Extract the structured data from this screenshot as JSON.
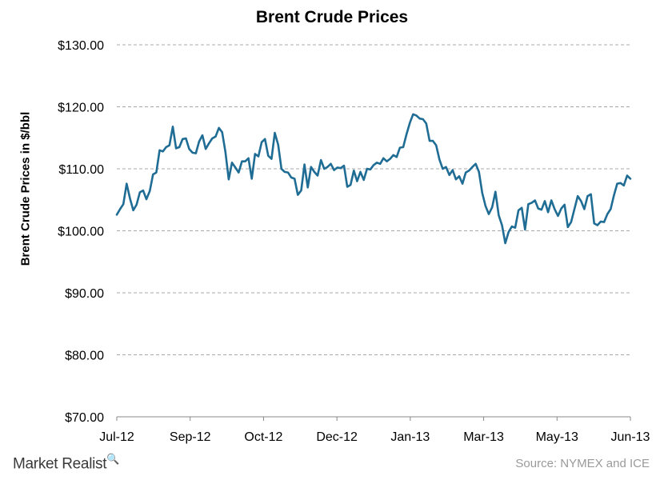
{
  "chart_data": {
    "type": "line",
    "title": "Brent Crude Prices",
    "xlabel": "",
    "ylabel": "Brent Crude Prices in $/bbl",
    "ylim": [
      70,
      130
    ],
    "yticks": [
      "$70.00",
      "$80.00",
      "$90.00",
      "$100.00",
      "$110.00",
      "$120.00",
      "$130.00"
    ],
    "xticks": [
      "Jul-12",
      "Sep-12",
      "Oct-12",
      "Dec-12",
      "Jan-13",
      "Mar-13",
      "May-13",
      "Jun-13"
    ],
    "grid": true,
    "line_color": "#1f6c94",
    "series": [
      {
        "values": [
          102.6,
          103.5,
          104.3,
          107.6,
          105.2,
          103.3,
          104.2,
          106.2,
          106.5,
          105.1,
          106.4,
          109.1,
          109.4,
          113.0,
          112.8,
          113.5,
          113.8,
          116.8,
          113.3,
          113.5,
          114.8,
          114.9,
          113.2,
          112.6,
          112.5,
          114.4,
          115.4,
          113.2,
          114.1,
          114.9,
          115.2,
          116.6,
          115.9,
          112.7,
          108.3,
          111.0,
          110.2,
          109.4,
          111.2,
          111.2,
          111.7,
          108.4,
          112.4,
          112.0,
          114.3,
          114.8,
          112.1,
          111.6,
          115.8,
          113.9,
          110.0,
          109.5,
          109.4,
          108.6,
          108.4,
          105.8,
          106.5,
          110.7,
          107.0,
          110.3,
          109.5,
          108.9,
          111.4,
          110.0,
          110.3,
          110.8,
          109.8,
          110.2,
          110.1,
          110.5,
          107.1,
          107.4,
          109.7,
          108.0,
          109.5,
          108.2,
          110.0,
          109.9,
          110.6,
          111.0,
          110.8,
          111.7,
          111.2,
          111.6,
          112.2,
          111.9,
          113.4,
          113.5,
          115.6,
          117.4,
          118.8,
          118.6,
          118.1,
          118.0,
          117.3,
          114.5,
          114.5,
          113.8,
          111.5,
          110.0,
          110.3,
          109.0,
          109.8,
          108.3,
          108.8,
          107.6,
          109.4,
          109.7,
          110.3,
          110.8,
          109.5,
          106.1,
          104.0,
          102.7,
          103.8,
          106.3,
          102.5,
          100.9,
          98.0,
          99.8,
          100.7,
          100.5,
          103.3,
          103.7,
          100.2,
          104.3,
          104.5,
          104.9,
          103.6,
          103.4,
          104.8,
          103.0,
          104.9,
          103.5,
          102.4,
          103.6,
          104.2,
          100.6,
          101.4,
          103.5,
          105.6,
          104.8,
          103.5,
          105.6,
          105.9,
          101.2,
          100.9,
          101.5,
          101.4,
          102.7,
          103.5,
          105.7,
          107.6,
          107.7,
          107.3,
          108.9,
          108.4
        ]
      }
    ]
  },
  "source_text": "Source: NYMEX and ICE",
  "brand": {
    "name": "Market Realist",
    "icon": "magnifier-icon"
  }
}
